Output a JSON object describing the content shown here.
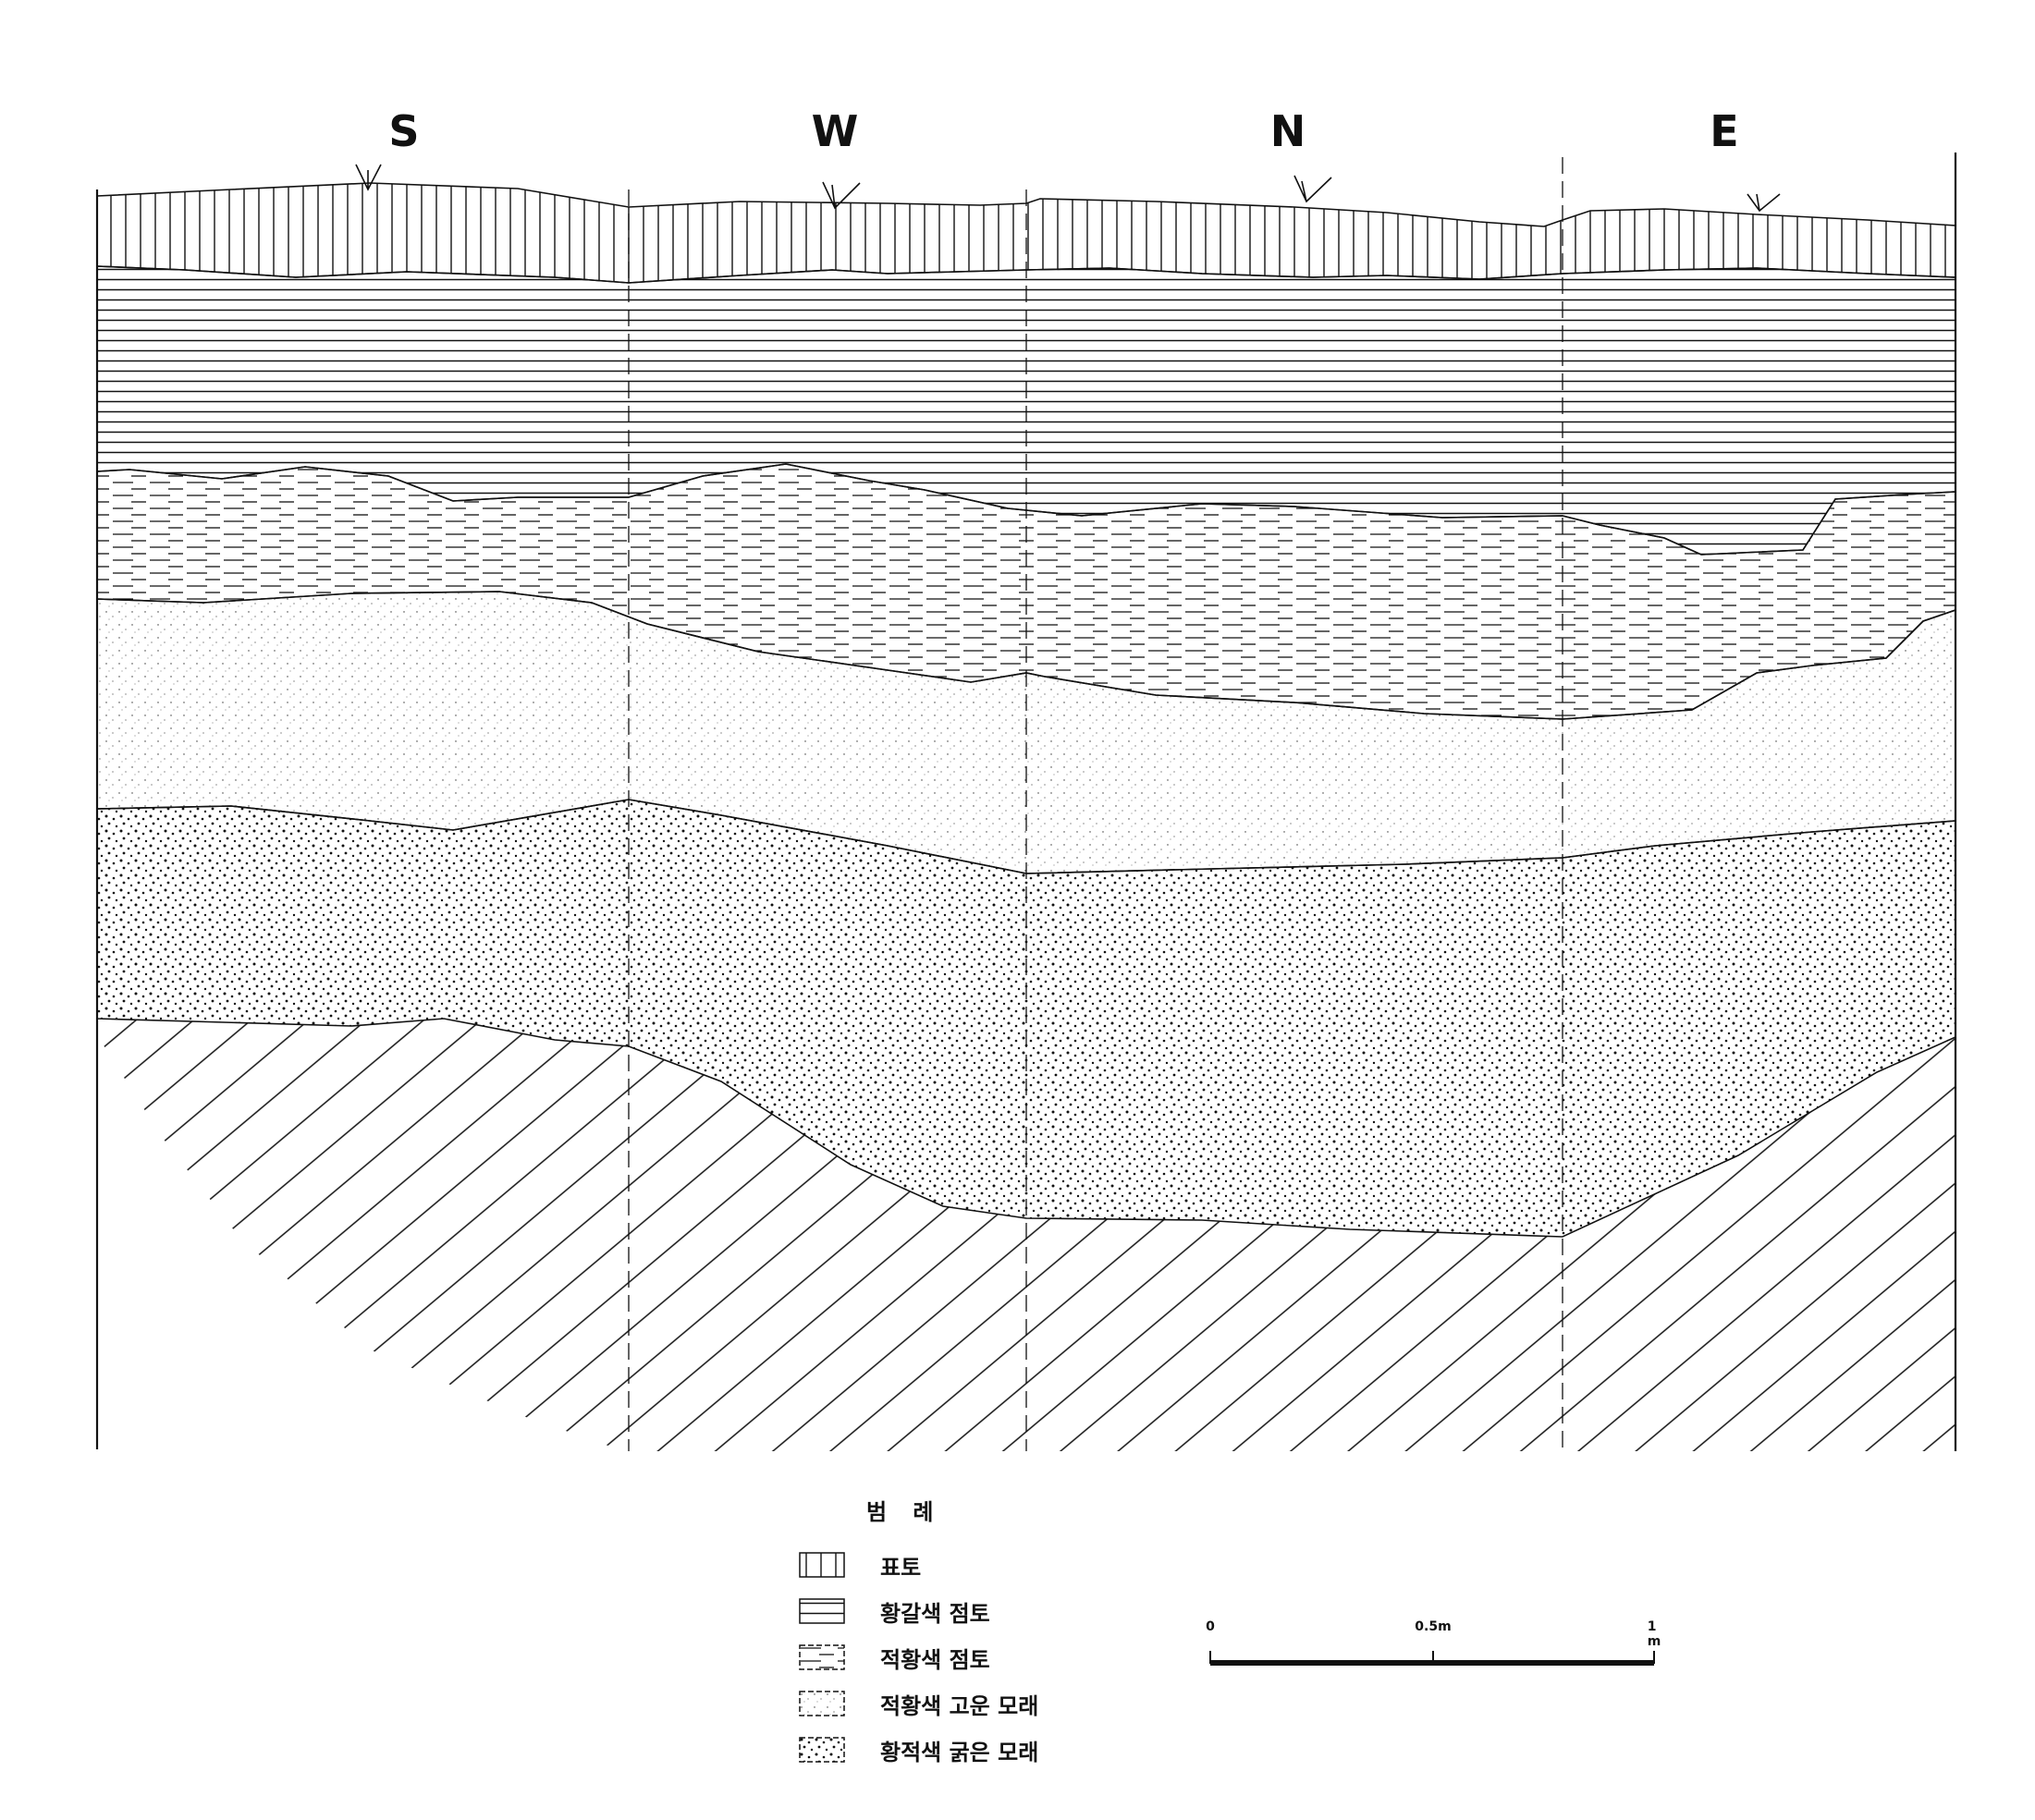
{
  "directions": [
    {
      "label": "S",
      "key": "s"
    },
    {
      "label": "W",
      "key": "w"
    },
    {
      "label": "N",
      "key": "n"
    },
    {
      "label": "E",
      "key": "e"
    }
  ],
  "legend": {
    "title": "범 례",
    "items": [
      {
        "label": "표토",
        "pattern": "vertical-lines"
      },
      {
        "label": "황갈색 점토",
        "pattern": "horizontal-lines"
      },
      {
        "label": "적황색 점토",
        "pattern": "dashed-lines"
      },
      {
        "label": "적황색 고운 모래",
        "pattern": "fine-dots"
      },
      {
        "label": "황적색 굵은 모래",
        "pattern": "coarse-dots"
      }
    ]
  },
  "scale_bar": {
    "labels": [
      "0",
      "0.5m",
      "1 m"
    ]
  },
  "colors": {
    "ink": "#111111",
    "paper": "#ffffff"
  }
}
